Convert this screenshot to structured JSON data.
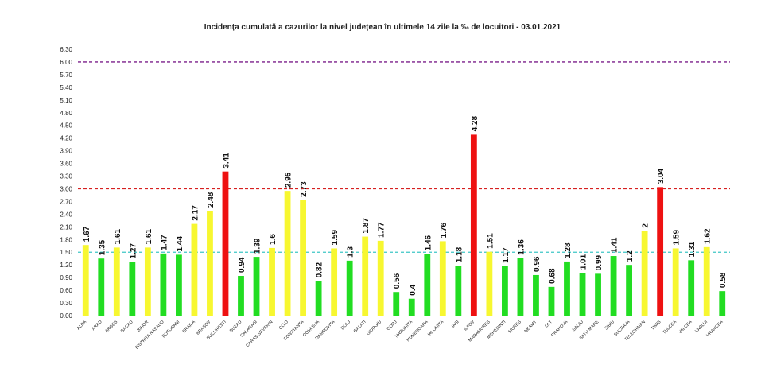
{
  "chart_data": {
    "type": "bar",
    "title": "Incidența cumulată a cazurilor la nivel județean în ultimele 14 zile la ‰ de locuitori - 03.01.2021",
    "ylim": [
      0,
      6.3
    ],
    "yticks": [
      "0.00",
      "0.30",
      "0.60",
      "0.90",
      "1.20",
      "1.50",
      "1.80",
      "2.10",
      "2.40",
      "2.70",
      "3.00",
      "3.30",
      "3.60",
      "3.90",
      "4.20",
      "4.50",
      "4.80",
      "5.10",
      "5.40",
      "5.70",
      "6.00",
      "6.30"
    ],
    "grid": false,
    "categories": [
      "ALBA",
      "ARAD",
      "ARGES",
      "BACAU",
      "BIHOR",
      "BISTRITA NASAUD",
      "BOTOSANI",
      "BRAILA",
      "BRASOV",
      "BUCURESTI",
      "BUZAU",
      "CALARASI",
      "CARAS-SEVERIN",
      "CLUJ",
      "CONSTANTA",
      "COVASNA",
      "DAMBOVITA",
      "DOLJ",
      "GALATI",
      "GIURGIU",
      "GORJ",
      "HARGHITA",
      "HUNEDOARA",
      "IALOMITA",
      "IASI",
      "ILFOV",
      "MARAMURES",
      "MEHEDINTI",
      "MURES",
      "NEAMT",
      "OLT",
      "PRAHOVA",
      "SALAJ",
      "SATU MARE",
      "SIBIU",
      "SUCEAVA",
      "TELEORMAN",
      "TIMIS",
      "TULCEA",
      "VALCEA",
      "VASLUI",
      "VRANCEA"
    ],
    "values": [
      1.67,
      1.35,
      1.61,
      1.27,
      1.61,
      1.47,
      1.44,
      2.17,
      2.48,
      3.41,
      0.94,
      1.39,
      1.6,
      2.95,
      2.73,
      0.82,
      1.59,
      1.3,
      1.87,
      1.77,
      0.56,
      0.4,
      1.46,
      1.76,
      1.18,
      4.28,
      1.51,
      1.17,
      1.36,
      0.96,
      0.68,
      1.28,
      1.01,
      0.99,
      1.41,
      1.2,
      2,
      3.04,
      1.59,
      1.31,
      1.62,
      0.58
    ],
    "value_labels": [
      "1.67",
      "1.35",
      "1.61",
      "1.27",
      "1.61",
      "1.47",
      "1.44",
      "2.17",
      "2.48",
      "3.41",
      "0.94",
      "1.39",
      "1.6",
      "2.95",
      "2.73",
      "0.82",
      "1.59",
      "1.3",
      "1.87",
      "1.77",
      "0.56",
      "0.4",
      "1.46",
      "1.76",
      "1.18",
      "4.28",
      "1.51",
      "1.17",
      "1.36",
      "0.96",
      "0.68",
      "1.28",
      "1.01",
      "0.99",
      "1.41",
      "1.2",
      "2",
      "3.04",
      "1.59",
      "1.31",
      "1.62",
      "0.58"
    ],
    "thresholds": [
      {
        "value": 6.0,
        "color": "#7b1f8a"
      },
      {
        "value": 3.0,
        "color": "#d62020"
      },
      {
        "value": 1.5,
        "color": "#3fc6c6"
      }
    ],
    "colors": {
      "green": "#22dd22",
      "yellow": "#f7f730",
      "red": "#ee1111"
    }
  }
}
